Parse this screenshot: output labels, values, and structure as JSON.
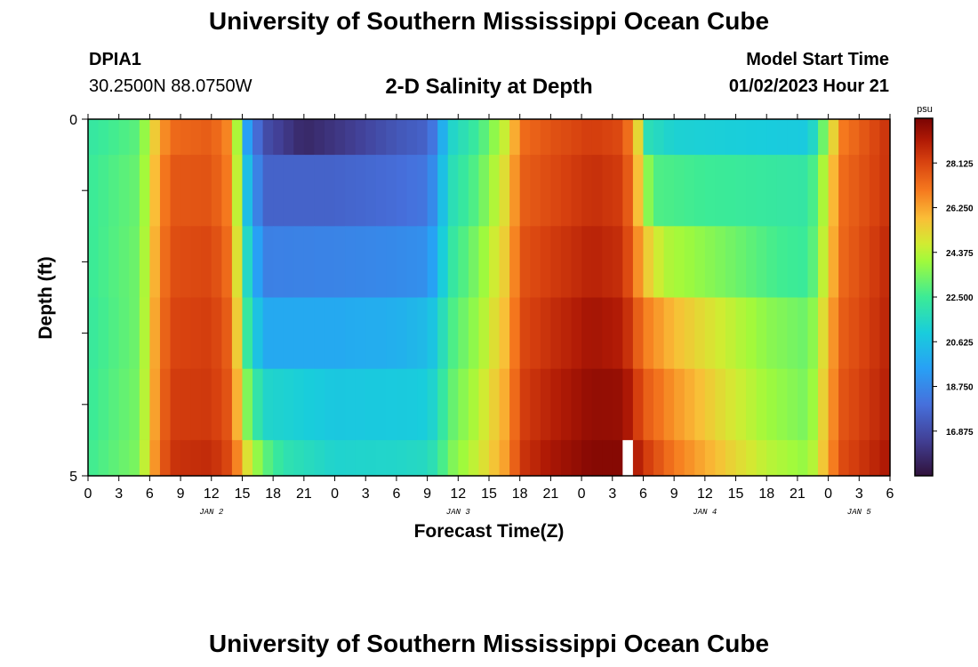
{
  "header": {
    "title": "University of Southern Mississippi Ocean Cube",
    "station_id": "DPIA1",
    "station_coords": "30.2500N  88.0750W",
    "plot_title": "2-D Salinity at Depth",
    "start_label": "Model Start Time",
    "start_value": "01/02/2023 Hour 21"
  },
  "footer": {
    "title": "University of Southern Mississippi Ocean Cube"
  },
  "chart_data": {
    "type": "heatmap",
    "title": "2-D Salinity at Depth",
    "xlabel": "Forecast Time(Z)",
    "ylabel": "Depth (ft)",
    "x_range_hours": [
      0,
      78
    ],
    "y_range": [
      0,
      5
    ],
    "y_ticks": [
      "0",
      "5"
    ],
    "x_tick_labels": [
      "0",
      "3",
      "6",
      "9",
      "12",
      "15",
      "18",
      "21",
      "0",
      "3",
      "6",
      "9",
      "12",
      "15",
      "18",
      "21",
      "0",
      "3",
      "6",
      "9",
      "12",
      "15",
      "18",
      "21",
      "0",
      "3",
      "6"
    ],
    "day_labels": [
      {
        "label": "JAN 2",
        "hour": 12
      },
      {
        "label": "JAN 3",
        "hour": 36
      },
      {
        "label": "JAN 4",
        "hour": 60
      },
      {
        "label": "JAN 5",
        "hour": 75
      }
    ],
    "colorbar": {
      "unit": "psu",
      "min": 15.0,
      "max": 30.0,
      "ticks": [
        "28.125",
        "26.250",
        "24.375",
        "22.500",
        "20.625",
        "18.750",
        "16.875"
      ],
      "tick_values": [
        28.125,
        26.25,
        24.375,
        22.5,
        20.625,
        18.75,
        16.875
      ]
    },
    "layers": [
      {
        "depth_range": [
          0,
          0.5
        ],
        "keyframes": [
          [
            0,
            22.2
          ],
          [
            5,
            23
          ],
          [
            6.5,
            25.5
          ],
          [
            8,
            27.3
          ],
          [
            12,
            27.6
          ],
          [
            13.5,
            26.8
          ],
          [
            14.5,
            24.2
          ],
          [
            15.5,
            19.5
          ],
          [
            17,
            17
          ],
          [
            21,
            15.7
          ],
          [
            25,
            16.3
          ],
          [
            30,
            17.2
          ],
          [
            33,
            17.6
          ],
          [
            34,
            18.8
          ],
          [
            35,
            21.2
          ],
          [
            38,
            22.5
          ],
          [
            41,
            25
          ],
          [
            42,
            27.2
          ],
          [
            45,
            27.8
          ],
          [
            49,
            28.3
          ],
          [
            52,
            28
          ],
          [
            53,
            26.5
          ],
          [
            54,
            24
          ],
          [
            54.5,
            21.8
          ],
          [
            57,
            21.2
          ],
          [
            65,
            21
          ],
          [
            70,
            20.9
          ],
          [
            71,
            22
          ],
          [
            72,
            24.5
          ],
          [
            73.5,
            27
          ],
          [
            78,
            28.6
          ]
        ]
      },
      {
        "depth_range": [
          0.5,
          1.5
        ],
        "keyframes": [
          [
            0,
            22.4
          ],
          [
            5,
            23.2
          ],
          [
            6.5,
            25.8
          ],
          [
            8,
            27.7
          ],
          [
            12,
            27.8
          ],
          [
            13.5,
            27
          ],
          [
            14.5,
            24.5
          ],
          [
            15.5,
            20.5
          ],
          [
            17,
            17.6
          ],
          [
            24,
            17.6
          ],
          [
            30,
            17.9
          ],
          [
            33,
            18.2
          ],
          [
            34,
            19.5
          ],
          [
            35,
            21.6
          ],
          [
            38,
            23
          ],
          [
            41,
            25.5
          ],
          [
            42,
            27.5
          ],
          [
            45,
            28
          ],
          [
            49,
            28.6
          ],
          [
            52,
            28.3
          ],
          [
            53,
            27
          ],
          [
            54,
            24.5
          ],
          [
            55,
            22.8
          ],
          [
            60,
            22.5
          ],
          [
            70,
            22.2
          ],
          [
            71,
            23.2
          ],
          [
            72,
            25.2
          ],
          [
            73.5,
            27.3
          ],
          [
            78,
            28.6
          ]
        ]
      },
      {
        "depth_range": [
          1.5,
          2.5
        ],
        "keyframes": [
          [
            0,
            22.4
          ],
          [
            5,
            23.3
          ],
          [
            6.5,
            26
          ],
          [
            8,
            27.9
          ],
          [
            12,
            28.1
          ],
          [
            13.5,
            27.3
          ],
          [
            14.5,
            25
          ],
          [
            15.5,
            21.5
          ],
          [
            17,
            18.5
          ],
          [
            24,
            18.6
          ],
          [
            30,
            18.8
          ],
          [
            33,
            19
          ],
          [
            34,
            20.1
          ],
          [
            35,
            22
          ],
          [
            38,
            23.6
          ],
          [
            41,
            25.8
          ],
          [
            42,
            27.8
          ],
          [
            45,
            28.3
          ],
          [
            49,
            28.9
          ],
          [
            52,
            28.6
          ],
          [
            53,
            27.4
          ],
          [
            54,
            25.8
          ],
          [
            56,
            24.3
          ],
          [
            62,
            23.4
          ],
          [
            67,
            22.6
          ],
          [
            70,
            22.4
          ],
          [
            71,
            23.5
          ],
          [
            72,
            25.5
          ],
          [
            73.5,
            27.4
          ],
          [
            78,
            28.8
          ]
        ]
      },
      {
        "depth_range": [
          2.5,
          3.5
        ],
        "keyframes": [
          [
            0,
            22.3
          ],
          [
            5,
            23.3
          ],
          [
            6.5,
            26.2
          ],
          [
            8,
            28.1
          ],
          [
            12,
            28.3
          ],
          [
            13.5,
            27.6
          ],
          [
            14.5,
            25.5
          ],
          [
            15.5,
            22.3
          ],
          [
            17,
            19.8
          ],
          [
            24,
            19.8
          ],
          [
            30,
            20
          ],
          [
            33,
            20.4
          ],
          [
            34,
            21
          ],
          [
            35,
            22.5
          ],
          [
            38,
            24
          ],
          [
            41,
            26.1
          ],
          [
            42,
            28
          ],
          [
            45,
            28.6
          ],
          [
            49,
            29.3
          ],
          [
            52,
            29
          ],
          [
            53,
            28.1
          ],
          [
            54,
            27
          ],
          [
            57,
            25.8
          ],
          [
            62,
            24.6
          ],
          [
            66,
            23.7
          ],
          [
            70,
            23.2
          ],
          [
            71,
            24.2
          ],
          [
            72,
            26
          ],
          [
            73.5,
            27.6
          ],
          [
            78,
            28.9
          ]
        ]
      },
      {
        "depth_range": [
          3.5,
          4.5
        ],
        "keyframes": [
          [
            0,
            22.4
          ],
          [
            5,
            23.4
          ],
          [
            6.5,
            26.3
          ],
          [
            8,
            28.3
          ],
          [
            12,
            28.4
          ],
          [
            13.5,
            27.8
          ],
          [
            14.5,
            26
          ],
          [
            15.5,
            23.5
          ],
          [
            17,
            21.4
          ],
          [
            24,
            20.8
          ],
          [
            30,
            20.9
          ],
          [
            33,
            21
          ],
          [
            34,
            21.6
          ],
          [
            35,
            22.9
          ],
          [
            38,
            24.4
          ],
          [
            41,
            26.4
          ],
          [
            42,
            28.2
          ],
          [
            45,
            28.9
          ],
          [
            49,
            29.6
          ],
          [
            52,
            29.5
          ],
          [
            53,
            28.8
          ],
          [
            54,
            27.7
          ],
          [
            57,
            26.5
          ],
          [
            62,
            25
          ],
          [
            66,
            24
          ],
          [
            70,
            23.4
          ],
          [
            71,
            24.5
          ],
          [
            72,
            26.2
          ],
          [
            73.5,
            27.8
          ],
          [
            78,
            29
          ]
        ]
      },
      {
        "depth_range": [
          4.5,
          5.0
        ],
        "keyframes": [
          [
            0,
            22.5
          ],
          [
            5,
            23.5
          ],
          [
            6.5,
            26.5
          ],
          [
            8,
            28.5
          ],
          [
            12,
            28.7
          ],
          [
            13.5,
            28.1
          ],
          [
            14.5,
            26.8
          ],
          [
            15.5,
            25
          ],
          [
            17,
            23.2
          ],
          [
            19,
            22
          ],
          [
            24,
            21.3
          ],
          [
            30,
            21.4
          ],
          [
            33,
            21.6
          ],
          [
            34,
            22.1
          ],
          [
            35,
            23.3
          ],
          [
            38,
            24.7
          ],
          [
            41,
            26.6
          ],
          [
            42,
            28.4
          ],
          [
            45,
            29.2
          ],
          [
            49,
            29.8
          ],
          [
            52,
            29.8
          ],
          [
            53,
            29.4
          ],
          [
            54,
            28.5
          ],
          [
            57,
            27
          ],
          [
            62,
            25.5
          ],
          [
            66,
            24.4
          ],
          [
            70,
            23.8
          ],
          [
            71,
            24.8
          ],
          [
            72,
            26.4
          ],
          [
            73.5,
            28
          ],
          [
            78,
            29.2
          ]
        ]
      }
    ],
    "missing_cells": [
      {
        "hour": 52,
        "depth_range": [
          4.5,
          5.0
        ]
      }
    ]
  }
}
